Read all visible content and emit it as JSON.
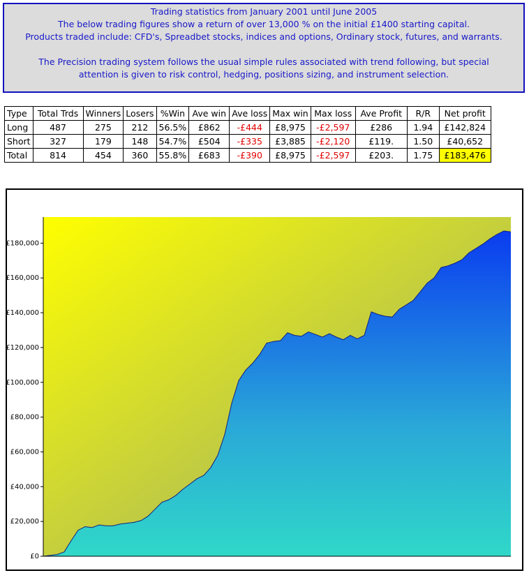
{
  "header": {
    "lines": [
      "Trading statistics from January 2001 until June 2005",
      "The below trading figures show a return of over 13,000 % on the initial £1400 starting capital.",
      "Products traded include: CFD's, Spreadbet stocks, indices and options, Ordinary stock, futures, and warrants.",
      "The Precision trading system follows the usual simple rules associated with trend following, but special",
      "attention is given to risk control, hedging, positions sizing, and instrument selection."
    ]
  },
  "table": {
    "columns": [
      "Type",
      "Total Trds",
      "Winners",
      "Losers",
      "%Win",
      "Ave win",
      "Ave loss",
      "Max win",
      "Max loss",
      "Ave Profit",
      "R/R",
      "Net profit"
    ],
    "rows": [
      [
        "Long",
        "487",
        "275",
        "212",
        "56.5%",
        "£862",
        "-£444",
        "£8,975",
        "-£2,597",
        "£286",
        "1.94",
        "£142,824"
      ],
      [
        "Short",
        "327",
        "179",
        "148",
        "54.7%",
        "£504",
        "-£335",
        "£3,885",
        "-£2,120",
        "£119.",
        "1.50",
        "£40,652"
      ],
      [
        "Total",
        "814",
        "454",
        "360",
        "55.8%",
        "£683",
        "-£390",
        "£8,975",
        "-£2,597",
        "£203.",
        "1.75",
        "£183,476"
      ]
    ]
  },
  "chart_data": {
    "type": "area",
    "color": "#0a3cf0",
    "values": [
      0,
      500,
      1000,
      2500,
      9000,
      15000,
      17000,
      16500,
      18000,
      17500,
      17500,
      18500,
      19000,
      19500,
      20500,
      23000,
      27000,
      31000,
      32500,
      35000,
      38500,
      41500,
      44500,
      46500,
      51000,
      58000,
      70000,
      88000,
      101000,
      107000,
      111000,
      116000,
      122500,
      123500,
      124000,
      128500,
      127000,
      126500,
      129000,
      127500,
      126000,
      128000,
      126000,
      124500,
      127000,
      125000,
      127000,
      140500,
      139000,
      138000,
      137500,
      142000,
      144500,
      147000,
      152000,
      157000,
      160000,
      166000,
      167000,
      168500,
      170500,
      174500,
      177000,
      179500,
      182500,
      185000,
      187000,
      186500
    ],
    "ylim": [
      0,
      195000
    ],
    "yticks": [
      {
        "value": 0,
        "label": "£0"
      },
      {
        "value": 20000,
        "label": "£20,000"
      },
      {
        "value": 40000,
        "label": "£40,000"
      },
      {
        "value": 60000,
        "label": "£60,000"
      },
      {
        "value": 80000,
        "label": "£80,000"
      },
      {
        "value": 100000,
        "label": "£100,000"
      },
      {
        "value": 120000,
        "label": "£120,000"
      },
      {
        "value": 140000,
        "label": "£140,000"
      },
      {
        "value": 160000,
        "label": "£160,000"
      },
      {
        "value": 180000,
        "label": "£180,000"
      }
    ]
  }
}
